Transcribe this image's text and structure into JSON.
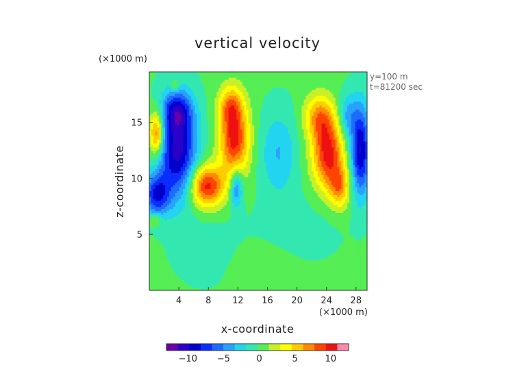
{
  "chart_data": {
    "type": "heatmap",
    "title": "vertical velocity",
    "xlabel": "x-coordinate",
    "ylabel": "z-coordinate",
    "x_unit": "(×1000 m)",
    "y_unit": "(×1000 m)",
    "annotations": [
      "y=100 m",
      "t=81200 sec"
    ],
    "xlim": [
      0,
      29.5
    ],
    "ylim": [
      0,
      19.5
    ],
    "x_ticks": [
      4,
      8,
      12,
      16,
      20,
      24,
      28
    ],
    "x_tick_labels": [
      "4",
      "8",
      "12",
      "16",
      "20",
      "24",
      "28"
    ],
    "y_ticks": [
      5,
      10,
      15
    ],
    "y_tick_labels": [
      "5",
      "10",
      "15"
    ],
    "colorbar": {
      "min": -13,
      "max": 12.5,
      "ticks": [
        -10,
        -5,
        0,
        5,
        10
      ],
      "tick_labels": [
        "−10",
        "−5",
        "0",
        "5",
        "10"
      ]
    },
    "background_value": 0,
    "features": [
      {
        "kind": "downdraft",
        "x": 3.8,
        "z": 12.5,
        "value": -10.5,
        "sx": 1.8,
        "sz": 3.0
      },
      {
        "kind": "downdraft",
        "x": 1.0,
        "z": 8.5,
        "value": -8,
        "sx": 1.2,
        "sz": 1.3
      },
      {
        "kind": "downdraft",
        "x": 3.8,
        "z": 16.0,
        "value": -6,
        "sx": 1.4,
        "sz": 1.2
      },
      {
        "kind": "updraft",
        "x": 1.0,
        "z": 14.0,
        "value": 9,
        "sx": 0.7,
        "sz": 1.4
      },
      {
        "kind": "updraft",
        "x": 7.8,
        "z": 9.3,
        "value": 10,
        "sx": 1.6,
        "sz": 1.3
      },
      {
        "kind": "updraft",
        "x": 11.5,
        "z": 13.5,
        "value": 10,
        "sx": 1.4,
        "sz": 2.4
      },
      {
        "kind": "updraft",
        "x": 11.0,
        "z": 16.5,
        "value": 5,
        "sx": 1.1,
        "sz": 1.2
      },
      {
        "kind": "downdraft",
        "x": 11.8,
        "z": 9.2,
        "value": -6,
        "sx": 0.6,
        "sz": 1.3
      },
      {
        "kind": "downdraft",
        "x": 17.5,
        "z": 12.2,
        "value": -3.5,
        "sx": 1.7,
        "sz": 2.6
      },
      {
        "kind": "updraft",
        "x": 24.2,
        "z": 12.2,
        "value": 10,
        "sx": 1.5,
        "sz": 2.2
      },
      {
        "kind": "updraft",
        "x": 23.0,
        "z": 15.5,
        "value": 6,
        "sx": 1.4,
        "sz": 1.4
      },
      {
        "kind": "updraft",
        "x": 25.8,
        "z": 9.2,
        "value": 6,
        "sx": 1.0,
        "sz": 1.3
      },
      {
        "kind": "downdraft",
        "x": 28.6,
        "z": 12.5,
        "value": -10,
        "sx": 0.9,
        "sz": 2.8
      },
      {
        "kind": "downdraft",
        "x": 26.8,
        "z": 15.5,
        "value": -4,
        "sx": 0.9,
        "sz": 1.4
      },
      {
        "kind": "updraft",
        "x": 3.5,
        "z": 18.3,
        "value": 3,
        "sx": 0.4,
        "sz": 0.4
      },
      {
        "kind": "updraft",
        "x": 0.8,
        "z": 6.3,
        "value": 3,
        "sx": 0.6,
        "sz": 0.4
      },
      {
        "kind": "downdraft",
        "x": 8.0,
        "z": 3.5,
        "value": -1.2,
        "sx": 3.0,
        "sz": 2.0
      },
      {
        "kind": "downdraft",
        "x": 20.0,
        "z": 5.5,
        "value": -1.0,
        "sx": 4.0,
        "sz": 2.0
      },
      {
        "kind": "updraft",
        "x": 15.0,
        "z": 2.0,
        "value": 1.2,
        "sx": 3.0,
        "sz": 1.5
      }
    ]
  }
}
